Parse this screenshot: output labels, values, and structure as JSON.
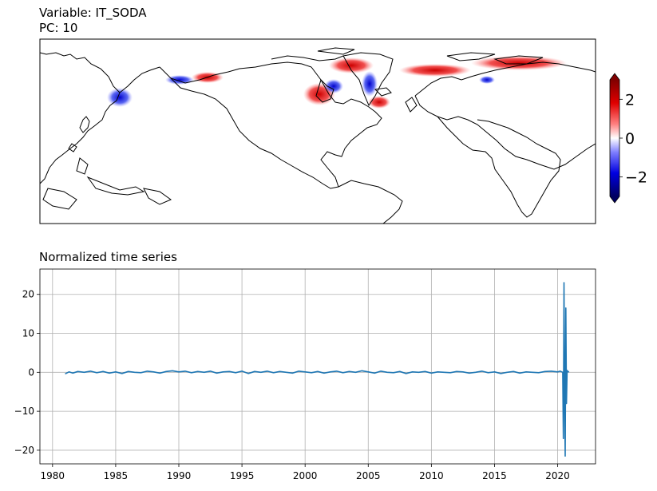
{
  "header": {
    "variable_line": "Variable: IT_SODA",
    "pc_line": "PC: 10"
  },
  "map_panel": {
    "colorbar": {
      "cmap": "seismic",
      "range": [
        -3,
        3
      ],
      "ticks": [
        2,
        0,
        -2
      ],
      "tick_labels": [
        "2",
        "0",
        "−2"
      ],
      "colors": {
        "high": "#c00000",
        "mid": "#ffffff",
        "low": "#00008c"
      }
    }
  },
  "chart_data": {
    "type": "line",
    "title": "Normalized time series",
    "xlabel": "",
    "ylabel": "",
    "xlim": [
      1979,
      2023
    ],
    "ylim": [
      -23.5,
      26.5
    ],
    "xticks": [
      1980,
      1985,
      1990,
      1995,
      2000,
      2005,
      2010,
      2015,
      2020
    ],
    "yticks": [
      20,
      10,
      0,
      -10,
      -20
    ],
    "ytick_labels": [
      "20",
      "10",
      "0",
      "−10",
      "−20"
    ],
    "grid": true,
    "line_color": "#1f77b4",
    "series": [
      {
        "x": [
          1981.0,
          1981.3,
          1981.6,
          1982.0,
          1982.5,
          1983.0,
          1983.5,
          1984.0,
          1984.5,
          1985.0,
          1985.5,
          1986.0,
          1986.5,
          1987.0,
          1987.5,
          1988.0,
          1988.5,
          1989.0,
          1989.5,
          1990.0,
          1990.5,
          1991.0,
          1991.5,
          1992.0,
          1992.5,
          1993.0,
          1993.5,
          1994.0,
          1994.5,
          1995.0,
          1995.5,
          1996.0,
          1996.5,
          1997.0,
          1997.5,
          1998.0,
          1998.5,
          1999.0,
          1999.5,
          2000.0,
          2000.5,
          2001.0,
          2001.5,
          2002.0,
          2002.5,
          2003.0,
          2003.5,
          2004.0,
          2004.5,
          2005.0,
          2005.5,
          2006.0,
          2006.5,
          2007.0,
          2007.5,
          2008.0,
          2008.5,
          2009.0,
          2009.5,
          2010.0,
          2010.5,
          2011.0,
          2011.5,
          2012.0,
          2012.5,
          2013.0,
          2013.5,
          2014.0,
          2014.5,
          2015.0,
          2015.5,
          2016.0,
          2016.5,
          2017.0,
          2017.5,
          2018.0,
          2018.5,
          2019.0,
          2019.5,
          2020.0,
          2020.2,
          2020.4,
          2020.45,
          2020.5,
          2020.55,
          2020.6,
          2020.65,
          2020.7,
          2020.75,
          2020.8,
          2020.85,
          2020.9
        ],
        "y": [
          -0.4,
          0.1,
          -0.2,
          0.2,
          0.0,
          0.3,
          -0.1,
          0.2,
          -0.2,
          0.1,
          -0.3,
          0.2,
          0.0,
          -0.1,
          0.3,
          0.1,
          -0.2,
          0.2,
          0.4,
          0.1,
          0.3,
          -0.1,
          0.2,
          0.0,
          0.3,
          -0.2,
          0.1,
          0.2,
          -0.1,
          0.3,
          -0.3,
          0.2,
          0.0,
          0.3,
          -0.1,
          0.2,
          0.0,
          -0.2,
          0.3,
          0.1,
          -0.1,
          0.2,
          -0.2,
          0.1,
          0.3,
          -0.1,
          0.2,
          0.0,
          0.4,
          0.1,
          -0.2,
          0.3,
          0.0,
          -0.1,
          0.2,
          -0.3,
          0.1,
          0.0,
          0.2,
          -0.2,
          0.1,
          0.0,
          -0.1,
          0.2,
          0.1,
          -0.2,
          0.0,
          0.3,
          -0.1,
          0.1,
          -0.3,
          0.0,
          0.2,
          -0.2,
          0.1,
          0.0,
          -0.1,
          0.2,
          0.3,
          0.1,
          0.3,
          0.0,
          -17.0,
          23.0,
          -5.0,
          -21.5,
          16.5,
          -8.0,
          0.5,
          0.2,
          0.1,
          0.2
        ]
      }
    ]
  }
}
